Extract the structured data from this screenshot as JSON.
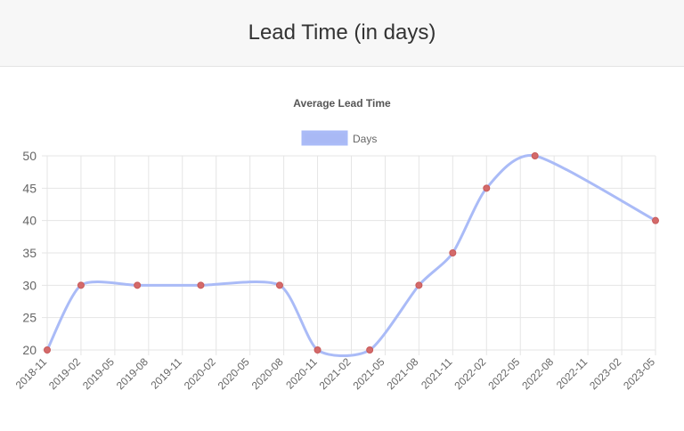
{
  "header": {
    "title": "Lead Time (in days)"
  },
  "colors": {
    "line": "#aabbf7",
    "line_fill": "#a9b9f5",
    "point": "#d46a6a",
    "grid": "#e5e5e5",
    "text": "#666666",
    "title_text": "#555555"
  },
  "chart_data": {
    "type": "line",
    "title": "Average Lead Time",
    "x_ticks": [
      "2018-11",
      "2019-02",
      "2019-05",
      "2019-08",
      "2019-11",
      "2020-02",
      "2020-05",
      "2020-08",
      "2020-11",
      "2021-02",
      "2021-05",
      "2021-08",
      "2021-11",
      "2022-02",
      "2022-05",
      "2022-08",
      "2022-11",
      "2023-02",
      "2023-05"
    ],
    "ylim": [
      20,
      50
    ],
    "y_ticks": [
      20,
      25,
      30,
      35,
      40,
      45,
      50
    ],
    "grid": true,
    "legend_position": "top-center",
    "series": [
      {
        "name": "Days",
        "points": [
          {
            "x": "2018-11-01",
            "y": 20
          },
          {
            "x": "2019-02-01",
            "y": 30
          },
          {
            "x": "2019-07-01",
            "y": 30
          },
          {
            "x": "2019-12-20",
            "y": 30
          },
          {
            "x": "2020-07-20",
            "y": 30
          },
          {
            "x": "2020-11-01",
            "y": 20
          },
          {
            "x": "2021-03-20",
            "y": 20
          },
          {
            "x": "2021-08-01",
            "y": 30
          },
          {
            "x": "2021-11-01",
            "y": 35
          },
          {
            "x": "2022-02-01",
            "y": 45
          },
          {
            "x": "2022-06-10",
            "y": 50
          },
          {
            "x": "2023-05-01",
            "y": 40
          }
        ]
      }
    ]
  }
}
